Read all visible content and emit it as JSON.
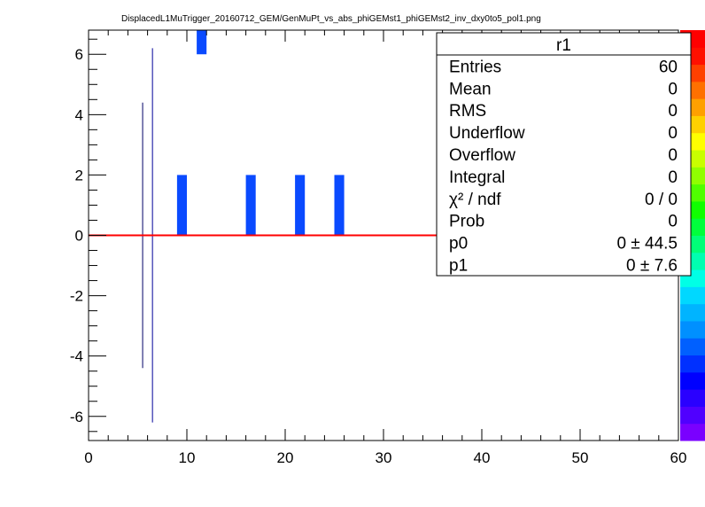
{
  "title": "DisplacedL1MuTrigger_20160712_GEM/GenMuPt_vs_abs_phiGEMst1_phiGEMst2_inv_dxy0to5_pol1.png",
  "stats_box": {
    "name": "r1",
    "rows": [
      {
        "label": "Entries",
        "value": "60"
      },
      {
        "label": "Mean",
        "value": "0"
      },
      {
        "label": "RMS",
        "value": "0"
      },
      {
        "label": "Underflow",
        "value": "0"
      },
      {
        "label": "Overflow",
        "value": "0"
      },
      {
        "label": "Integral",
        "value": "0"
      },
      {
        "label": "χ² / ndf",
        "value": "0 / 0"
      },
      {
        "label": "Prob",
        "value": "0"
      },
      {
        "label": "p0",
        "value": "0 ± 44.5"
      },
      {
        "label": "p1",
        "value": "0 ± 7.6"
      }
    ]
  },
  "chart_data": {
    "type": "heatmap",
    "xlim": [
      0,
      60
    ],
    "ylim": [
      -6.8,
      6.8
    ],
    "x_ticks": [
      "0",
      "10",
      "20",
      "30",
      "40",
      "50",
      "60"
    ],
    "y_ticks": [
      "-6",
      "-4",
      "-2",
      "0",
      "2",
      "4",
      "6"
    ],
    "x_tick_values": [
      0,
      10,
      20,
      30,
      40,
      50,
      60
    ],
    "y_tick_values": [
      -6,
      -4,
      -2,
      0,
      2,
      4,
      6
    ],
    "bins": [
      {
        "x0": 9,
        "x1": 10,
        "y0": 0,
        "y1": 2
      },
      {
        "x0": 11,
        "x1": 12,
        "y0": 6,
        "y1": 6.8
      },
      {
        "x0": 16,
        "x1": 17,
        "y0": 0,
        "y1": 2
      },
      {
        "x0": 21,
        "x1": 22,
        "y0": 0,
        "y1": 2
      },
      {
        "x0": 25,
        "x1": 26,
        "y0": 0,
        "y1": 2
      }
    ],
    "vertical_lines": [
      {
        "x": 5.5,
        "y0": -4.4,
        "y1": 4.4,
        "color": "#000066"
      },
      {
        "x": 6.5,
        "y0": -6.2,
        "y1": 6.2,
        "color": "#000099"
      }
    ],
    "fit_line": {
      "p0": 0,
      "p1": 0,
      "color": "#ff0000"
    },
    "bin_color": "#0a4aff",
    "palette": [
      "#7a00ff",
      "#5000ff",
      "#2a00ff",
      "#0000ff",
      "#0030ff",
      "#0060ff",
      "#0090ff",
      "#00b4ff",
      "#00d8ff",
      "#00ffe6",
      "#00ffb0",
      "#00ff78",
      "#00ff3c",
      "#10ff00",
      "#50ff00",
      "#90ff00",
      "#c8ff00",
      "#ffff00",
      "#ffd000",
      "#ffa000",
      "#ff7000",
      "#ff4000",
      "#ff1000",
      "#ff0000"
    ]
  }
}
